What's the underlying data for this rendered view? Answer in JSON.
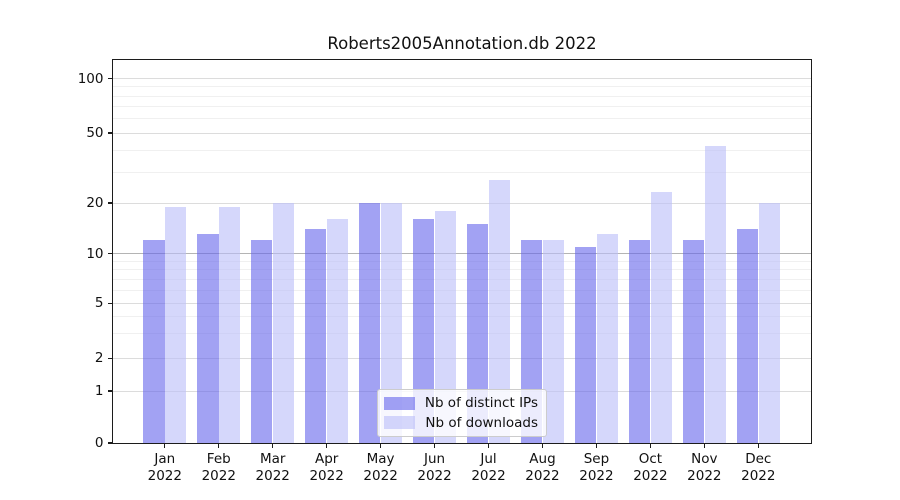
{
  "title": "Roberts2005Annotation.db 2022",
  "chart_data": {
    "type": "bar",
    "title": "Roberts2005Annotation.db 2022",
    "categories": [
      "Jan 2022",
      "Feb 2022",
      "Mar 2022",
      "Apr 2022",
      "May 2022",
      "Jun 2022",
      "Jul 2022",
      "Aug 2022",
      "Sep 2022",
      "Oct 2022",
      "Nov 2022",
      "Dec 2022"
    ],
    "series": [
      {
        "name": "Nb of distinct IPs",
        "color": "rgba(100,100,235,0.6)",
        "values": [
          12,
          13,
          12,
          14,
          20,
          16,
          15,
          12,
          11,
          12,
          12,
          14
        ]
      },
      {
        "name": "Nb of downloads",
        "color": "rgba(187,190,249,0.62)",
        "values": [
          19,
          19,
          20,
          16,
          20,
          18,
          27,
          12,
          13,
          23,
          42,
          20
        ]
      }
    ],
    "xlabel": "",
    "ylabel": "",
    "yscale": "asinh",
    "y_major_ticks": [
      0,
      1,
      2,
      5,
      10,
      20,
      50,
      100
    ],
    "y_minor_ticks": [
      3,
      4,
      6,
      7,
      8,
      9,
      30,
      40,
      60,
      70,
      80,
      90
    ],
    "ylim": [
      0,
      127
    ],
    "grid": true,
    "legend_position": "lower center"
  }
}
